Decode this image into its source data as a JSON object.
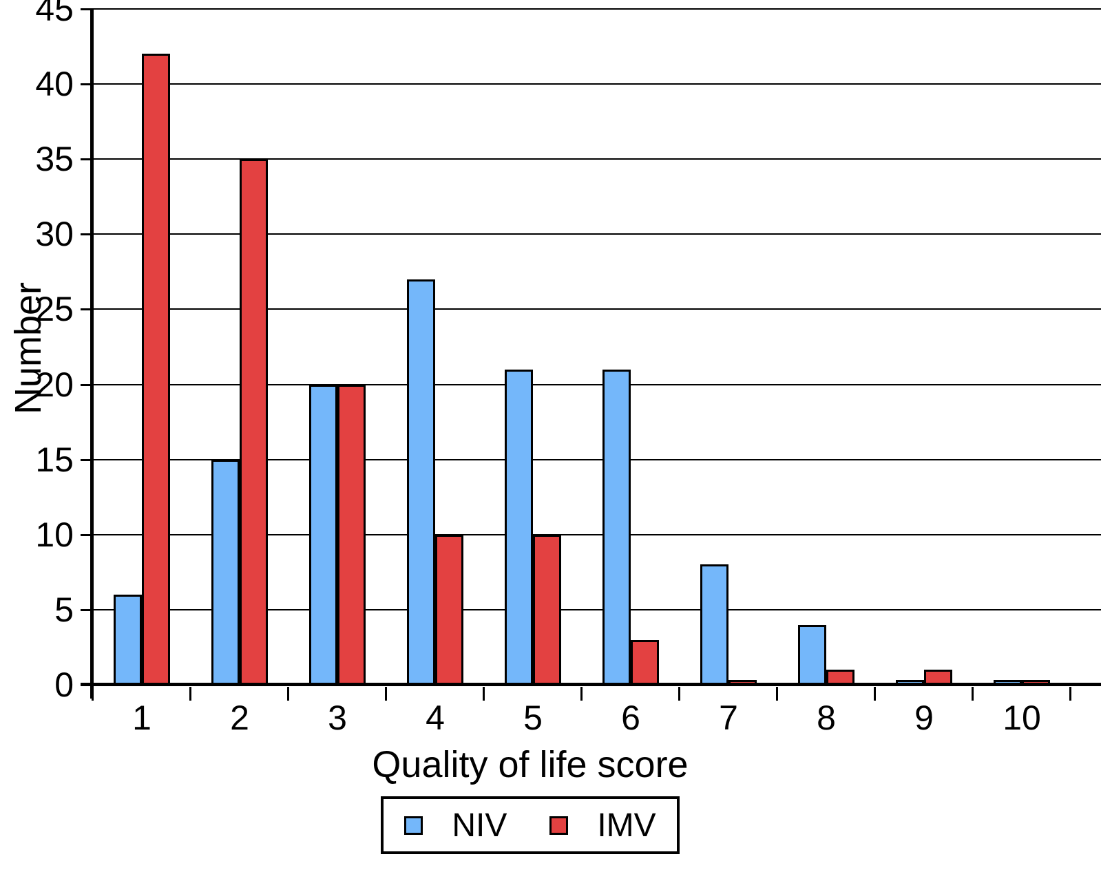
{
  "chart_data": {
    "type": "bar",
    "title": "",
    "xlabel": "Quality of life score",
    "ylabel": "Number",
    "categories": [
      "1",
      "2",
      "3",
      "4",
      "5",
      "6",
      "7",
      "8",
      "9",
      "10"
    ],
    "series": [
      {
        "name": "NIV",
        "color": "#74B7FA",
        "values": [
          6,
          15,
          20,
          27,
          21,
          21,
          8,
          4,
          0.3,
          0.3
        ]
      },
      {
        "name": "IMV",
        "color": "#E34141",
        "values": [
          42,
          35,
          20,
          10,
          10,
          3,
          0.3,
          1,
          1,
          0.3
        ]
      }
    ],
    "ylim": [
      0,
      45
    ],
    "yticks": [
      45,
      40,
      35,
      30,
      25,
      20,
      15,
      10,
      5,
      0
    ],
    "grid": true,
    "bar_border_color": "#000000",
    "legend_position": "bottom"
  }
}
